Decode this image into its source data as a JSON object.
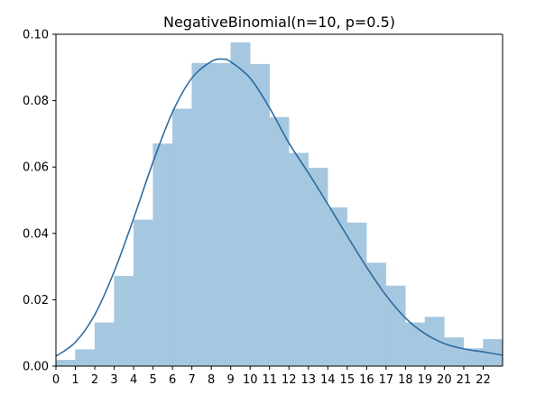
{
  "colors": {
    "bar_fill": "#a6c7e0",
    "curve": "#2e6ca0",
    "axis": "#000000",
    "background": "#ffffff"
  },
  "chart_data": {
    "type": "bar",
    "title": "NegativeBinomial(n=10, p=0.5)",
    "xlabel": "",
    "ylabel": "",
    "xlim": [
      0,
      23
    ],
    "ylim": [
      0,
      0.1
    ],
    "grid": false,
    "legend": "none",
    "x_ticks": [
      "0",
      "1",
      "2",
      "3",
      "4",
      "5",
      "6",
      "7",
      "8",
      "9",
      "10",
      "11",
      "12",
      "13",
      "14",
      "15",
      "16",
      "17",
      "18",
      "19",
      "20",
      "21",
      "22"
    ],
    "y_ticks": [
      "0.00",
      "0.02",
      "0.04",
      "0.06",
      "0.08",
      "0.10"
    ],
    "bins": [
      {
        "x0": 0,
        "x1": 1,
        "value": 0.0018
      },
      {
        "x0": 1,
        "x1": 2,
        "value": 0.005
      },
      {
        "x0": 2,
        "x1": 3,
        "value": 0.0131
      },
      {
        "x0": 3,
        "x1": 4,
        "value": 0.0271
      },
      {
        "x0": 4,
        "x1": 5,
        "value": 0.0441
      },
      {
        "x0": 5,
        "x1": 6,
        "value": 0.067
      },
      {
        "x0": 6,
        "x1": 7,
        "value": 0.0775
      },
      {
        "x0": 7,
        "x1": 8,
        "value": 0.0913
      },
      {
        "x0": 8,
        "x1": 9,
        "value": 0.0913
      },
      {
        "x0": 9,
        "x1": 10,
        "value": 0.0975
      },
      {
        "x0": 10,
        "x1": 11,
        "value": 0.091
      },
      {
        "x0": 11,
        "x1": 12,
        "value": 0.075
      },
      {
        "x0": 12,
        "x1": 13,
        "value": 0.0642
      },
      {
        "x0": 13,
        "x1": 14,
        "value": 0.0597
      },
      {
        "x0": 14,
        "x1": 15,
        "value": 0.0478
      },
      {
        "x0": 15,
        "x1": 16,
        "value": 0.0432
      },
      {
        "x0": 16,
        "x1": 17,
        "value": 0.0311
      },
      {
        "x0": 17,
        "x1": 18,
        "value": 0.0242
      },
      {
        "x0": 18,
        "x1": 19,
        "value": 0.0131
      },
      {
        "x0": 19,
        "x1": 20,
        "value": 0.0148
      },
      {
        "x0": 20,
        "x1": 21,
        "value": 0.0086
      },
      {
        "x0": 21,
        "x1": 22,
        "value": 0.0053
      },
      {
        "x0": 22,
        "x1": 23,
        "value": 0.0081
      }
    ],
    "density_curve": {
      "name": "density",
      "x": [
        0,
        1,
        2,
        3,
        4,
        5,
        6,
        7,
        8,
        8.6,
        9,
        10,
        11,
        12,
        13,
        14,
        15,
        16,
        17,
        18,
        19,
        20,
        21,
        22,
        23
      ],
      "y": [
        0.003,
        0.0072,
        0.0155,
        0.0285,
        0.0445,
        0.0615,
        0.0765,
        0.0868,
        0.0918,
        0.0925,
        0.0917,
        0.0868,
        0.0778,
        0.0672,
        0.0582,
        0.0488,
        0.0392,
        0.0298,
        0.0213,
        0.0145,
        0.0098,
        0.0068,
        0.0052,
        0.0043,
        0.0033
      ]
    }
  }
}
